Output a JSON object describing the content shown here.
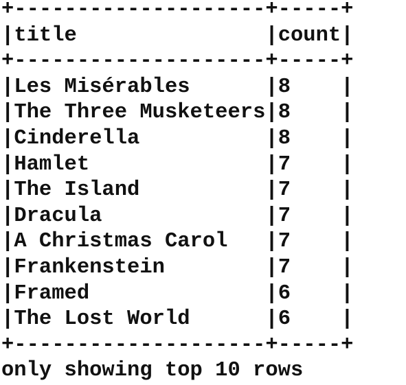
{
  "table": {
    "columns": [
      "title",
      "count"
    ],
    "rows": [
      {
        "title": "Les Misérables",
        "count": "8"
      },
      {
        "title": "The Three Musketeers",
        "count": "8"
      },
      {
        "title": "Cinderella",
        "count": "8"
      },
      {
        "title": "Hamlet",
        "count": "7"
      },
      {
        "title": "The Island",
        "count": "7"
      },
      {
        "title": "Dracula",
        "count": "7"
      },
      {
        "title": "A Christmas Carol",
        "count": "7"
      },
      {
        "title": "Frankenstein",
        "count": "7"
      },
      {
        "title": "Framed",
        "count": "6"
      },
      {
        "title": "The Lost World",
        "count": "6"
      }
    ]
  },
  "footer": "only showing top 10 rows"
}
